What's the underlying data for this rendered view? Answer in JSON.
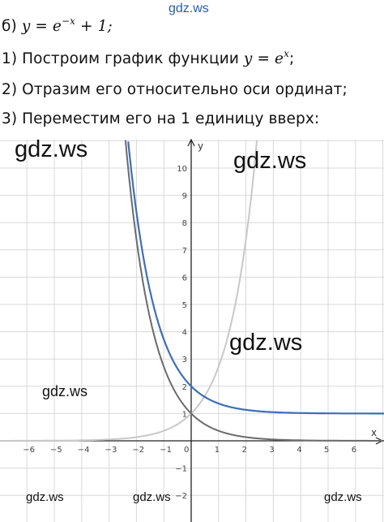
{
  "text": {
    "line1_prefix": "б) ",
    "line1_math_a": "y = e",
    "line1_sup": "−x",
    "line1_math_b": " + 1;",
    "line2_text": "1) Построим график функции ",
    "line2_math": "y = e",
    "line2_sup": "x",
    "line2_end": ";",
    "line3": "2) Отразим его относительно оси ординат;",
    "line4": "3) Переместим его на 1 единицу вверх:"
  },
  "watermark": "gdz.ws",
  "colors": {
    "grid": "#d9d9d9",
    "axis": "#222222",
    "curve_exp_x": "#c8c8c8",
    "curve_exp_neg_x": "#6b6b6b",
    "curve_shifted": "#3d6fb6",
    "watermark_top": "#1f5fb0"
  },
  "chart_data": {
    "type": "line",
    "xlabel": "x",
    "ylabel": "y",
    "xlim": [
      -7,
      7.2
    ],
    "ylim": [
      -2.9,
      11
    ],
    "grid": true,
    "x_ticks": [
      -6,
      -5,
      -4,
      -3,
      -2,
      -1,
      0,
      1,
      2,
      3,
      4,
      5,
      6
    ],
    "x_tick_labels": [
      "−6",
      "−5",
      "−4",
      "−3",
      "−2",
      "−1",
      "0",
      "1",
      "2",
      "3",
      "4",
      "5",
      "6"
    ],
    "y_ticks": [
      10,
      9,
      8,
      7,
      6,
      5,
      4,
      3,
      2,
      1,
      -1,
      -2
    ],
    "y_tick_labels": [
      "10",
      "9",
      "8",
      "7",
      "6",
      "5",
      "4",
      "3",
      "2",
      "1",
      "−1",
      "−2"
    ],
    "series": [
      {
        "formula": "e^x",
        "style": "light-gray"
      },
      {
        "formula": "e^(-x)",
        "style": "dark-gray"
      },
      {
        "formula": "e^(-x) + 1",
        "style": "blue"
      }
    ]
  }
}
